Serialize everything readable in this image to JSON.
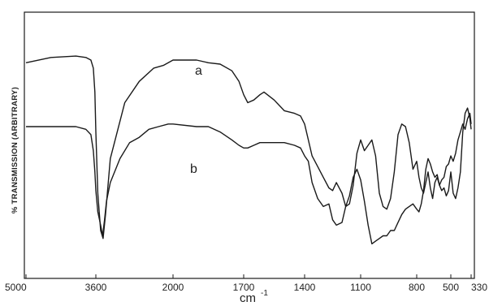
{
  "chart_data": {
    "type": "line",
    "title": "",
    "ylabel": "% TRANSMISSION (ARBITRARY)",
    "xlabel_unit": "cm",
    "xlabel_exponent": "-1",
    "x_ticks": [
      "5000",
      "3600",
      "2000",
      "1700",
      "1400",
      "1100",
      "800",
      "500",
      "330"
    ],
    "grid": false,
    "series": [
      {
        "name": "a",
        "x": [
          5000,
          4500,
          4000,
          3800,
          3700,
          3650,
          3620,
          3600,
          3560,
          3500,
          3450,
          3400,
          3300,
          3000,
          2700,
          2400,
          2200,
          2000,
          1900,
          1850,
          1800,
          1750,
          1720,
          1700,
          1680,
          1650,
          1620,
          1600,
          1550,
          1500,
          1450,
          1420,
          1400,
          1380,
          1360,
          1330,
          1300,
          1270,
          1250,
          1230,
          1200,
          1180,
          1160,
          1140,
          1120,
          1100,
          1080,
          1060,
          1040,
          1020,
          1000,
          980,
          960,
          940,
          920,
          900,
          880,
          860,
          840,
          820,
          800,
          780,
          760,
          740,
          720,
          700,
          680,
          660,
          640,
          620,
          600,
          580,
          560,
          540,
          520,
          500,
          480,
          460,
          440,
          420,
          400,
          380,
          360,
          340,
          330
        ],
        "y": [
          81,
          83,
          83.5,
          83,
          82,
          79,
          70,
          55,
          32,
          18,
          15,
          24,
          45,
          66,
          74,
          79,
          80,
          82,
          82,
          81,
          80.5,
          78,
          74,
          69,
          66,
          67,
          69,
          70,
          67,
          63,
          62,
          61,
          58,
          52,
          46,
          42,
          38,
          34,
          33,
          36,
          32,
          27,
          28,
          35,
          47,
          52,
          48,
          50,
          52,
          46,
          32,
          27,
          26,
          30,
          40,
          54,
          58,
          57,
          51,
          41,
          44,
          38,
          34,
          32,
          36,
          40,
          34,
          30,
          36,
          38,
          35,
          33,
          34,
          31,
          33,
          40,
          32,
          30,
          34,
          40,
          55,
          62,
          64,
          60,
          56
        ]
      },
      {
        "name": "b",
        "x": [
          5000,
          4500,
          4000,
          3800,
          3700,
          3650,
          3620,
          3600,
          3560,
          3500,
          3460,
          3420,
          3380,
          3300,
          3100,
          2900,
          2700,
          2500,
          2300,
          2100,
          2000,
          1900,
          1850,
          1800,
          1750,
          1720,
          1700,
          1680,
          1650,
          1620,
          1600,
          1550,
          1500,
          1450,
          1420,
          1400,
          1380,
          1360,
          1330,
          1300,
          1270,
          1250,
          1230,
          1200,
          1180,
          1160,
          1140,
          1120,
          1100,
          1080,
          1060,
          1040,
          1020,
          1000,
          980,
          960,
          940,
          920,
          900,
          880,
          860,
          840,
          820,
          800,
          780,
          760,
          740,
          720,
          700,
          680,
          660,
          640,
          620,
          600,
          580,
          560,
          540,
          520,
          500,
          480,
          460,
          440,
          420,
          400,
          380,
          360,
          340,
          330
        ],
        "y": [
          57,
          57,
          57,
          56,
          54,
          48,
          40,
          33,
          25,
          20,
          16,
          22,
          29,
          36,
          45,
          51,
          53,
          56,
          57,
          58,
          58,
          57,
          57,
          55,
          52,
          50,
          49,
          49,
          50,
          51,
          51,
          51,
          51,
          50,
          49,
          46,
          44,
          36,
          30,
          27,
          28,
          22,
          20,
          21,
          27,
          31,
          38,
          41,
          37,
          29,
          20,
          13,
          14,
          15,
          16,
          16,
          18,
          18,
          21,
          24,
          26,
          27,
          28,
          26,
          25,
          28,
          33,
          41,
          45,
          43,
          40,
          38,
          39,
          35,
          37,
          38,
          42,
          43,
          46,
          44,
          47,
          52,
          55,
          58,
          56,
          60,
          62,
          58
        ]
      }
    ]
  }
}
